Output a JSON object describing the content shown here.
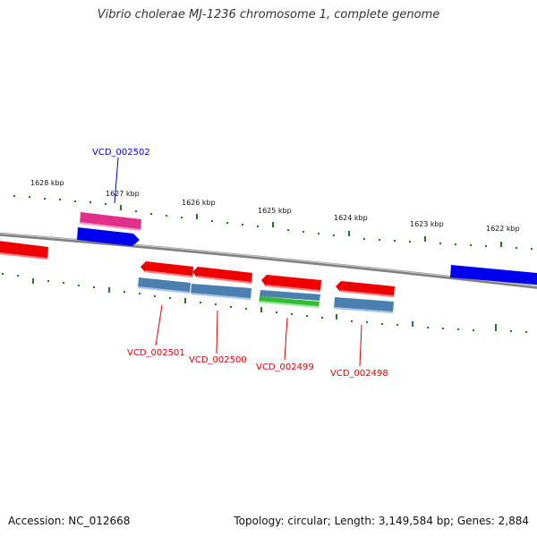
{
  "title": "Vibrio cholerae MJ-1236 chromosome 1, complete genome",
  "footer": {
    "accession": "Accession: NC_012668",
    "summary": "Topology: circular; Length: 3,149,584 bp; Genes: 2,884"
  },
  "ticks": [
    "1628 kbp",
    "1627 kbp",
    "1626 kbp",
    "1625 kbp",
    "1624 kbp",
    "1623 kbp",
    "1622 kbp"
  ],
  "gene_labels": [
    "VCD_002502",
    "VCD_002501",
    "VCD_002500",
    "VCD_002499",
    "VCD_002498"
  ],
  "colors": {
    "backbone": "#808080",
    "tick": "#1f7a1f",
    "forward_gene": "#0000ee",
    "reverse_gene": "#ee0000",
    "magenta_feature": "#e0308a",
    "steel_feature": "#4a7fb0",
    "green_feature": "#33bb33",
    "label_blue": "#0000cc",
    "label_red": "#dd0000"
  }
}
